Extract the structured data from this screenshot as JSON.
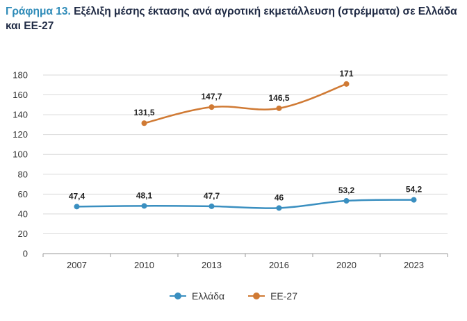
{
  "title": {
    "lead": "Γράφημα 13.",
    "text": "Εξέλιξη μέσης έκτασης ανά αγροτική εκμετάλλευση (στρέμματα) σε Ελλάδα και ΕΕ-27"
  },
  "chart_data": {
    "type": "line",
    "categories": [
      "2007",
      "2010",
      "2013",
      "2016",
      "2020",
      "2023"
    ],
    "ylim": [
      0,
      180
    ],
    "yticks": [
      0,
      20,
      40,
      60,
      80,
      100,
      120,
      140,
      160,
      180
    ],
    "grid": true,
    "legend_position": "bottom",
    "series": [
      {
        "name": "Ελλάδα",
        "color": "#3a8fc0",
        "values": [
          47.4,
          48.1,
          47.7,
          46,
          53.2,
          54.2
        ],
        "labels": [
          "47,4",
          "48,1",
          "47,7",
          "46",
          "53,2",
          "54,2"
        ]
      },
      {
        "name": "ΕΕ-27",
        "color": "#d07a34",
        "values": [
          null,
          131.5,
          147.7,
          146.5,
          171,
          null
        ],
        "labels": [
          null,
          "131,5",
          "147,7",
          "146,5",
          "171",
          null
        ]
      }
    ]
  }
}
